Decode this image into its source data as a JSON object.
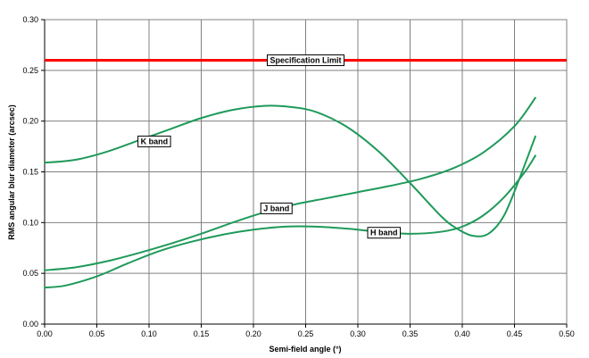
{
  "chart_data": {
    "type": "line",
    "xlabel": "Semi-field angle (°)",
    "ylabel": "RMS angular blur diameter (arcsec)",
    "xlim": [
      0.0,
      0.5
    ],
    "ylim": [
      0.0,
      0.3
    ],
    "x_ticks": [
      "0.00",
      "0.05",
      "0.10",
      "0.15",
      "0.20",
      "0.25",
      "0.30",
      "0.35",
      "0.40",
      "0.45",
      "0.50"
    ],
    "y_ticks": [
      "0.00",
      "0.05",
      "0.10",
      "0.15",
      "0.20",
      "0.25",
      "0.30"
    ],
    "grid": true,
    "reference_line": {
      "name": "Specification Limit",
      "y": 0.26,
      "color": "#ff0000"
    },
    "series": [
      {
        "name": "K band",
        "color": "#1f9a5a",
        "x": [
          0.0,
          0.03,
          0.06,
          0.09,
          0.12,
          0.15,
          0.18,
          0.21,
          0.235,
          0.26,
          0.29,
          0.32,
          0.35,
          0.38,
          0.395,
          0.41,
          0.425,
          0.44,
          0.455,
          0.47
        ],
        "y": [
          0.159,
          0.162,
          0.17,
          0.181,
          0.192,
          0.203,
          0.211,
          0.215,
          0.214,
          0.209,
          0.194,
          0.17,
          0.139,
          0.106,
          0.094,
          0.087,
          0.089,
          0.107,
          0.144,
          0.185
        ]
      },
      {
        "name": "J band",
        "color": "#1f9a5a",
        "x": [
          0.0,
          0.03,
          0.06,
          0.09,
          0.12,
          0.15,
          0.18,
          0.21,
          0.24,
          0.27,
          0.3,
          0.33,
          0.36,
          0.39,
          0.42,
          0.45,
          0.47
        ],
        "y": [
          0.053,
          0.056,
          0.062,
          0.07,
          0.079,
          0.089,
          0.1,
          0.11,
          0.118,
          0.124,
          0.13,
          0.136,
          0.143,
          0.153,
          0.169,
          0.195,
          0.223
        ]
      },
      {
        "name": "H band",
        "color": "#1f9a5a",
        "x": [
          0.0,
          0.02,
          0.05,
          0.08,
          0.11,
          0.14,
          0.17,
          0.2,
          0.23,
          0.26,
          0.29,
          0.32,
          0.35,
          0.38,
          0.4,
          0.42,
          0.44,
          0.46,
          0.47
        ],
        "y": [
          0.036,
          0.038,
          0.047,
          0.06,
          0.072,
          0.081,
          0.088,
          0.093,
          0.096,
          0.096,
          0.094,
          0.091,
          0.089,
          0.091,
          0.096,
          0.107,
          0.125,
          0.15,
          0.166
        ]
      }
    ],
    "annotations": [
      {
        "text": "K band",
        "x": 0.105,
        "y": 0.18
      },
      {
        "text": "J band",
        "x": 0.222,
        "y": 0.114
      },
      {
        "text": "H band",
        "x": 0.325,
        "y": 0.09
      }
    ]
  }
}
